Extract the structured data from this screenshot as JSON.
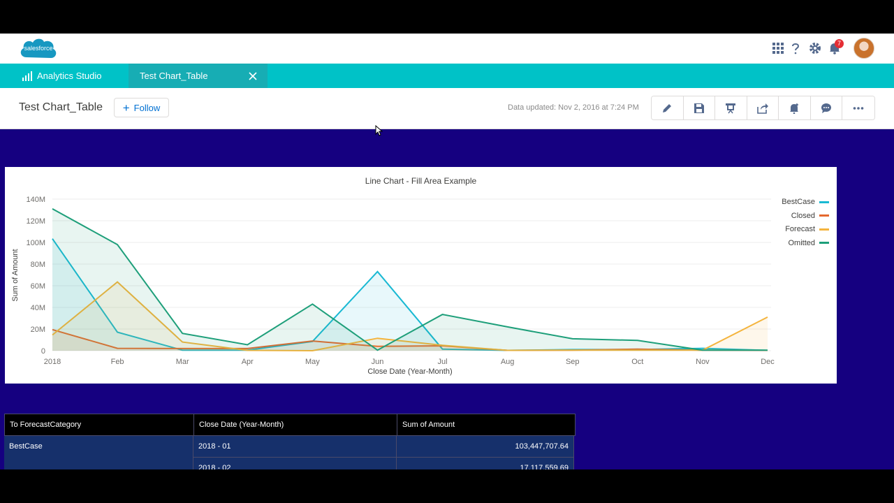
{
  "header": {
    "logo_text": "salesforce",
    "notification_count": "7"
  },
  "nav": {
    "app_name": "Analytics Studio",
    "tab_label": "Test Chart_Table"
  },
  "page": {
    "title": "Test Chart_Table",
    "follow_label": "Follow",
    "data_updated": "Data updated: Nov 2, 2016 at 7:24 PM"
  },
  "toolbar_icons": [
    "pencil-icon",
    "save-icon",
    "present-icon",
    "share-icon",
    "notification-icon",
    "comment-icon",
    "more-icon"
  ],
  "chart_data": {
    "type": "area",
    "title": "Line Chart - Fill Area Example",
    "xlabel": "Close Date (Year-Month)",
    "ylabel": "Sum of Amount",
    "categories": [
      "2018",
      "Feb",
      "Mar",
      "Apr",
      "May",
      "Jun",
      "Jul",
      "Aug",
      "Sep",
      "Oct",
      "Nov",
      "Dec"
    ],
    "y_ticks": [
      "0",
      "20M",
      "40M",
      "60M",
      "80M",
      "100M",
      "120M",
      "140M"
    ],
    "ylim": [
      0,
      140
    ],
    "y_units": "M",
    "grid": true,
    "legend_position": "top-right",
    "series": [
      {
        "name": "BestCase",
        "color": "#1ab9d3",
        "values": [
          103.4,
          17.1,
          0.5,
          0.5,
          8.5,
          73,
          1.5,
          0.3,
          1,
          1,
          2.2,
          0.3
        ]
      },
      {
        "name": "Closed",
        "color": "#e5692f",
        "values": [
          19.5,
          2.2,
          2,
          2,
          9,
          4,
          4.5,
          0.3,
          0.5,
          1.5,
          0.5,
          0.3
        ]
      },
      {
        "name": "Forecast",
        "color": "#f4b43d",
        "values": [
          14.5,
          63.5,
          8,
          0.3,
          0,
          11.5,
          5,
          0.3,
          0.5,
          0.5,
          0.5,
          31
        ]
      },
      {
        "name": "Omitted",
        "color": "#1e9f7a",
        "values": [
          131,
          98,
          16,
          5.5,
          43,
          0.5,
          33.5,
          22,
          11,
          9.5,
          0.5,
          0.5
        ]
      }
    ]
  },
  "table": {
    "headers": [
      "To ForecastCategory",
      "Close Date (Year-Month)",
      "Sum of Amount"
    ],
    "rows": [
      {
        "category": "BestCase",
        "date": "2018 - 01",
        "amount": "103,447,707.64"
      },
      {
        "category": "",
        "date": "2018 - 02",
        "amount": "17,117,559.69"
      }
    ]
  }
}
